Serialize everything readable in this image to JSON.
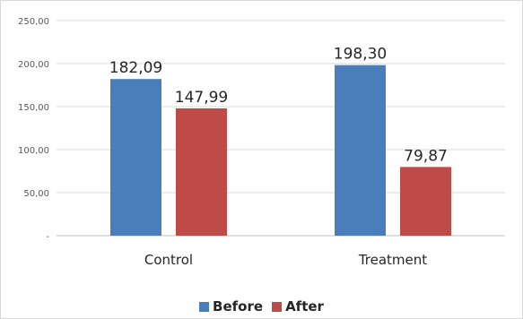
{
  "chart_data": {
    "type": "bar",
    "categories": [
      "Control",
      "Treatment"
    ],
    "series": [
      {
        "name": "Before",
        "values": [
          182.09,
          198.3
        ],
        "labels": [
          "182,09",
          "198,30"
        ],
        "color": "#4a7ebb"
      },
      {
        "name": "After",
        "values": [
          147.99,
          79.87
        ],
        "labels": [
          "147,99",
          "79,87"
        ],
        "color": "#be4b48"
      }
    ],
    "yticks": [
      0,
      50,
      100,
      150,
      200,
      250
    ],
    "ytick_labels": [
      "-",
      "50,00",
      "100,00",
      "150,00",
      "200,00",
      "250,00"
    ],
    "ylim": [
      0,
      250
    ],
    "grid": true,
    "legend_position": "bottom",
    "title": "",
    "xlabel": "",
    "ylabel": ""
  }
}
